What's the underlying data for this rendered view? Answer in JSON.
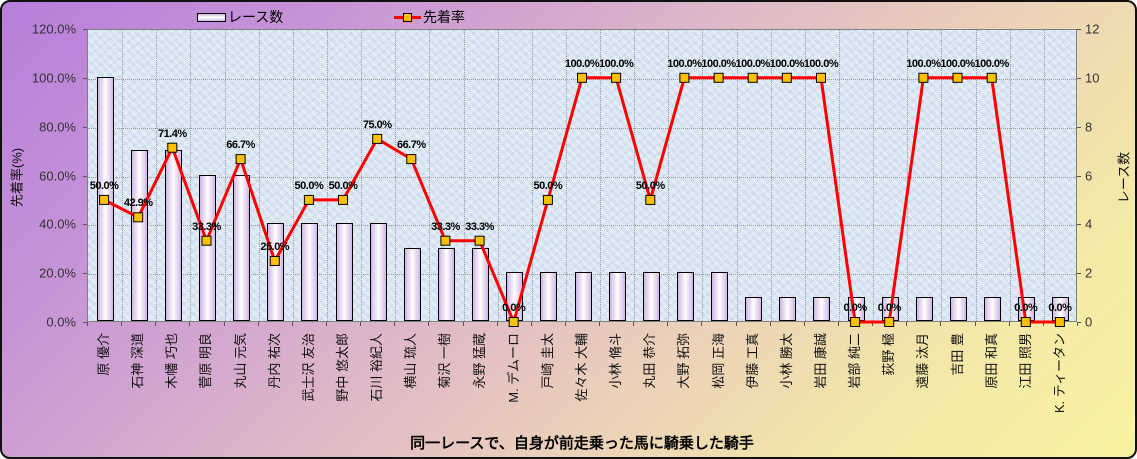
{
  "chart_data": {
    "type": "bar",
    "combo": "bar+line",
    "title": "同一レースで、自身が前走乗った馬に騎乗した騎手",
    "categories": [
      "原 優介",
      "石神 深道",
      "木幡 巧也",
      "菅原 明良",
      "丸山 元気",
      "丹内 祐次",
      "武士沢 友治",
      "野中 悠太郎",
      "石川 裕紀人",
      "横山 琉人",
      "菊沢 一樹",
      "永野 猛蔵",
      "M. デムーロ",
      "戸崎 圭太",
      "佐々木 大輔",
      "小林 脩斗",
      "丸田 恭介",
      "大野 拓弥",
      "松岡 正海",
      "伊藤 工真",
      "小林 勝太",
      "岩田 康誠",
      "岩部 純二",
      "荻野 極",
      "遠藤 汰月",
      "吉田 豊",
      "原田 和真",
      "江田 照男",
      "K. ティータン"
    ],
    "series": [
      {
        "name": "レース数",
        "type": "bar",
        "axis": "right",
        "values": [
          10,
          7,
          7,
          6,
          6,
          4,
          4,
          4,
          4,
          3,
          3,
          3,
          2,
          2,
          2,
          2,
          2,
          2,
          2,
          1,
          1,
          1,
          1,
          1,
          1,
          1,
          1,
          1,
          1
        ]
      },
      {
        "name": "先着率",
        "type": "line",
        "axis": "left",
        "values": [
          50,
          42.9,
          71.4,
          33.3,
          66.7,
          25,
          50,
          50,
          75,
          66.7,
          33.3,
          33.3,
          0,
          50,
          100,
          100,
          50,
          100,
          100,
          100,
          100,
          100,
          0,
          0,
          100,
          100,
          100,
          0,
          0
        ],
        "point_labels": [
          "50.0%",
          "42.9%",
          "71.4%",
          "33.3%",
          "66.7%",
          "25.0%",
          "50.0%",
          "50.0%",
          "75.0%",
          "66.7%",
          "33.3%",
          "33.3%",
          "0.0%",
          "50.0%",
          "100.0%",
          "100.0%",
          "50.0%",
          "100.0%",
          "100.0%",
          "100.0%",
          "100.0%",
          "100.0%",
          "0.0%",
          "0.0%",
          "100.0%",
          "100.0%",
          "100.0%",
          "0.0%",
          "0.0%"
        ]
      }
    ],
    "left_axis": {
      "title": "先着率(%)",
      "min": 0,
      "max": 120,
      "ticks": [
        "0.0%",
        "20.0%",
        "40.0%",
        "60.0%",
        "80.0%",
        "100.0%",
        "120.0%"
      ]
    },
    "right_axis": {
      "title": "レース数",
      "min": 0,
      "max": 12,
      "ticks": [
        "0",
        "2",
        "4",
        "6",
        "8",
        "10",
        "12"
      ]
    },
    "grid": "both, dotted",
    "legend_position": "top",
    "colors": {
      "line": "#ff0000",
      "marker_fill": "#ffc000",
      "marker_border": "#000000",
      "bar_edge": "#cfb6e4",
      "bar_center": "#ffffff",
      "bar_border": "#000000",
      "plot_background": "#dbe7f2",
      "frame_gradient_top_left": "#b87edc",
      "frame_gradient_bottom_right": "#f8f3a0"
    }
  }
}
